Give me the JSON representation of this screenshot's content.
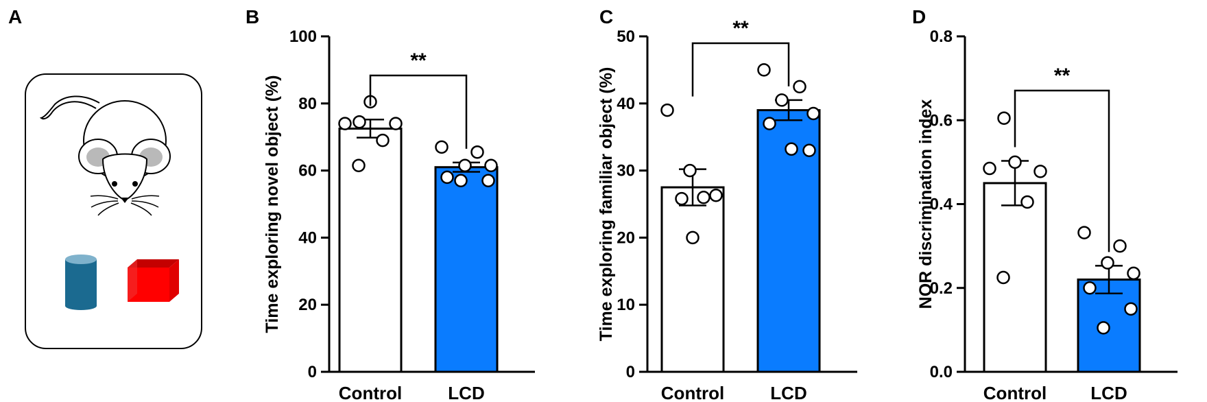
{
  "panel_a": {
    "letter": "A",
    "illustration": "mouse-with-two-objects"
  },
  "chart_data": [
    {
      "panel": "B",
      "type": "bar",
      "ylabel": "Time exploring novel object (%)",
      "xlabel": "",
      "categories": [
        "Control",
        "LCD"
      ],
      "values": [
        72.5,
        61.0
      ],
      "sem": [
        2.7,
        1.4
      ],
      "points": [
        [
          74.5,
          80.5,
          74.0,
          74.0,
          69.0,
          61.5
        ],
        [
          67.0,
          65.5,
          61.5,
          61.5,
          58.0,
          57.0,
          57.0
        ]
      ],
      "ylim": [
        0,
        100
      ],
      "yticks": [
        "0",
        "20",
        "40",
        "60",
        "80",
        "100"
      ],
      "significance": "**",
      "colors": [
        "#ffffff",
        "#0a7cff"
      ]
    },
    {
      "panel": "C",
      "type": "bar",
      "ylabel": "Time exploring familiar object (%)",
      "xlabel": "",
      "categories": [
        "Control",
        "LCD"
      ],
      "values": [
        27.5,
        39.0
      ],
      "sem": [
        2.7,
        1.5
      ],
      "points": [
        [
          39.0,
          30.0,
          26.3,
          26.0,
          25.8,
          20.0
        ],
        [
          45.0,
          42.5,
          40.5,
          38.5,
          37.0,
          33.0,
          33.2
        ]
      ],
      "ylim": [
        0,
        50
      ],
      "yticks": [
        "0",
        "10",
        "20",
        "30",
        "40",
        "50"
      ],
      "significance": "**",
      "colors": [
        "#ffffff",
        "#0a7cff"
      ]
    },
    {
      "panel": "D",
      "type": "bar",
      "ylabel": "NOR discrimination index",
      "xlabel": "",
      "categories": [
        "Control",
        "LCD"
      ],
      "values": [
        0.45,
        0.22
      ],
      "sem": [
        0.053,
        0.033
      ],
      "points": [
        [
          0.605,
          0.5,
          0.485,
          0.478,
          0.405,
          0.225
        ],
        [
          0.332,
          0.3,
          0.26,
          0.235,
          0.2,
          0.15,
          0.105
        ]
      ],
      "ylim": [
        0,
        0.8
      ],
      "yticks": [
        "0.0",
        "0.2",
        "0.4",
        "0.6",
        "0.8"
      ],
      "significance": "**",
      "colors": [
        "#ffffff",
        "#0a7cff"
      ]
    }
  ]
}
